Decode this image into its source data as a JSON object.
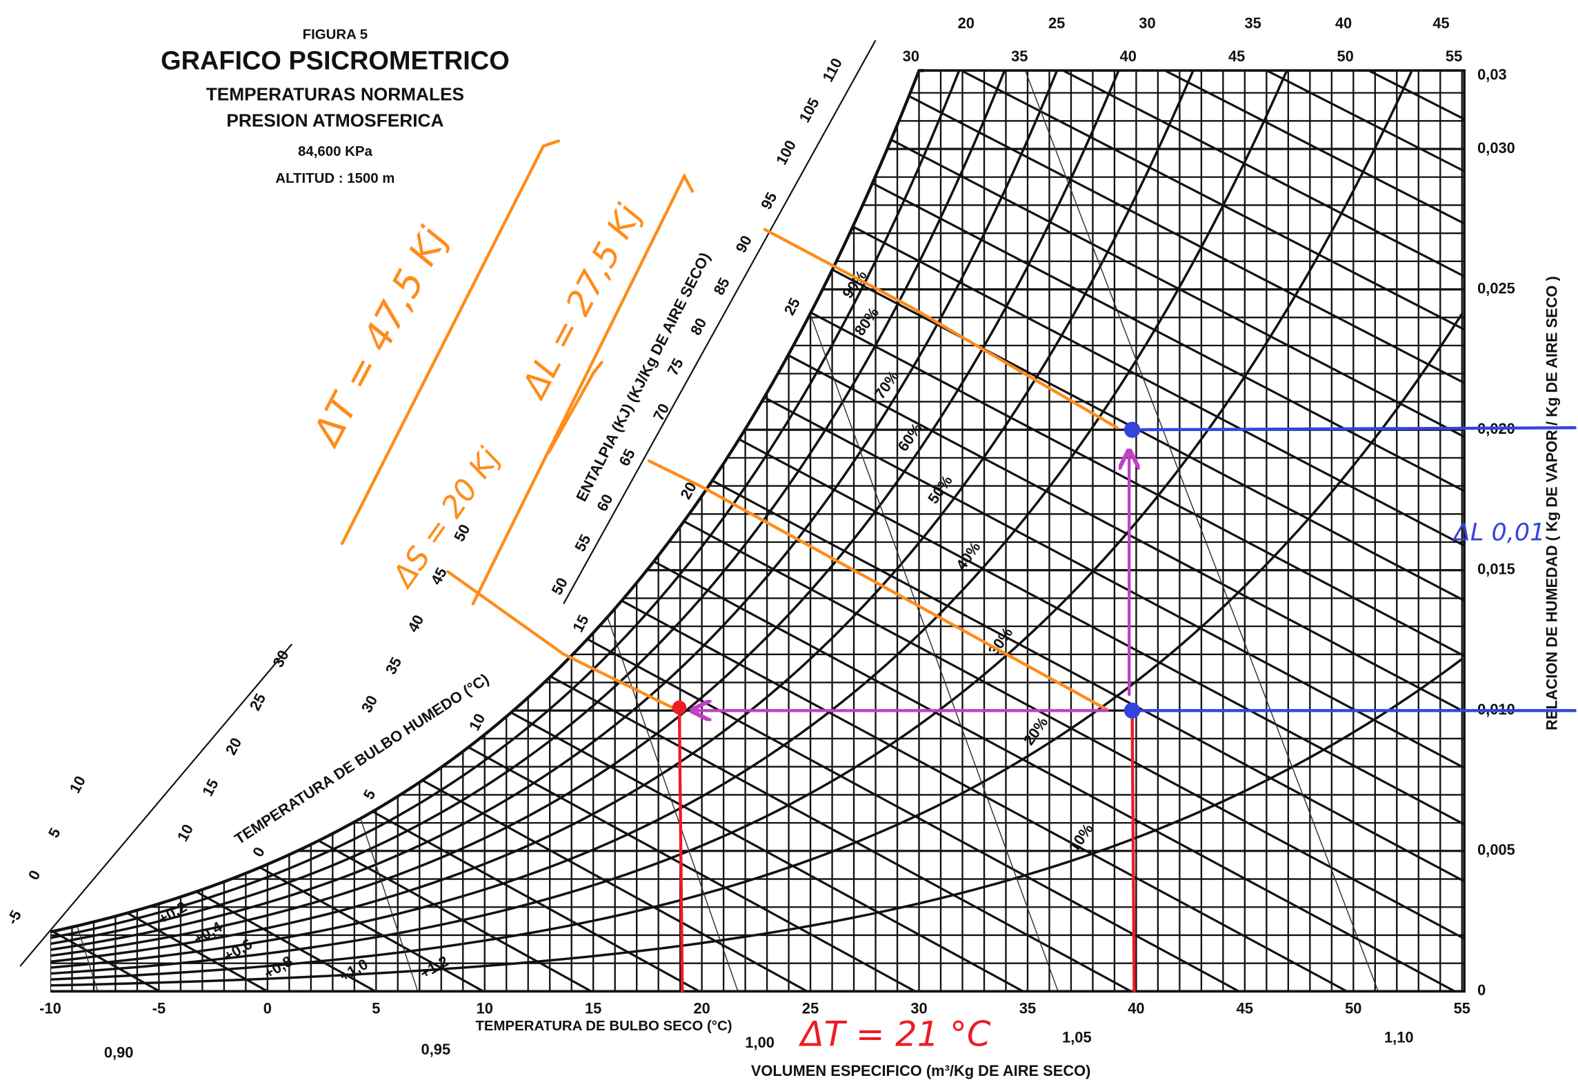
{
  "header": {
    "figure": "FIGURA 5",
    "title": "GRAFICO PSICROMETRICO",
    "lines": [
      "TEMPERATURAS NORMALES",
      "PRESION ATMOSFERICA",
      "84,600 KPa",
      "ALTITUD : 1500 m"
    ]
  },
  "axes": {
    "dry_bulb": {
      "label": "TEMPERATURA DE BULBO SECO (°C)",
      "ticks": [
        "-10",
        "-5",
        "0",
        "5",
        "10",
        "15",
        "20",
        "25",
        "30",
        "35",
        "40",
        "45",
        "50",
        "55"
      ],
      "top_ticks": [
        "30",
        "35",
        "40",
        "45",
        "50",
        "55"
      ],
      "top_upper_ticks": [
        "20",
        "25",
        "30",
        "35",
        "40",
        "45"
      ]
    },
    "humidity": {
      "label": "RELACION DE HUMEDAD ( Kg DE VAPOR / Kg DE AIRE SECO )",
      "ticks": [
        "0",
        "0,005",
        "0,010",
        "0,015",
        "0,020",
        "0,025",
        "0,030",
        "0,03"
      ]
    },
    "specific_volume": {
      "label": "VOLUMEN ESPECIFICO (m³/Kg DE AIRE SECO)",
      "ticks": [
        "0,90",
        "0,95",
        "1,00",
        "1,05",
        "1,10"
      ]
    },
    "enthalpy": {
      "label": "ENTALPIA (KJ) (KJ/Kg DE AIRE SECO)",
      "ticks_low": [
        "-5",
        "0",
        "5",
        "10"
      ],
      "ticks_mid": [
        "10",
        "15",
        "20",
        "25",
        "30"
      ],
      "ticks_high": [
        "30",
        "35",
        "40",
        "45",
        "50"
      ],
      "ticks_top": [
        "50",
        "55",
        "60",
        "65",
        "70",
        "75",
        "80",
        "85",
        "90",
        "95",
        "100",
        "105",
        "110"
      ]
    },
    "wet_bulb": {
      "label": "TEMPERATURA DE BULBO HUMEDO (°C)",
      "ticks": [
        "0",
        "5",
        "10",
        "15",
        "20",
        "25"
      ]
    },
    "relative_humidity": {
      "ticks": [
        "10%",
        "20%",
        "30%",
        "40%",
        "50%",
        "60%",
        "70%",
        "80%",
        "90%"
      ]
    },
    "corrections": [
      "+0,2",
      "+0,4",
      "+0,6",
      "+0,8",
      "+1,0",
      "+1,2"
    ]
  },
  "annotations": {
    "total": "ΔT = 47,5 Kj",
    "latent": "ΔL = 27,5 Kj",
    "sensible": "ΔS = 20 Kj",
    "temperature": "ΔT = 21 °C",
    "humidity": "ΔL 0,01"
  }
}
